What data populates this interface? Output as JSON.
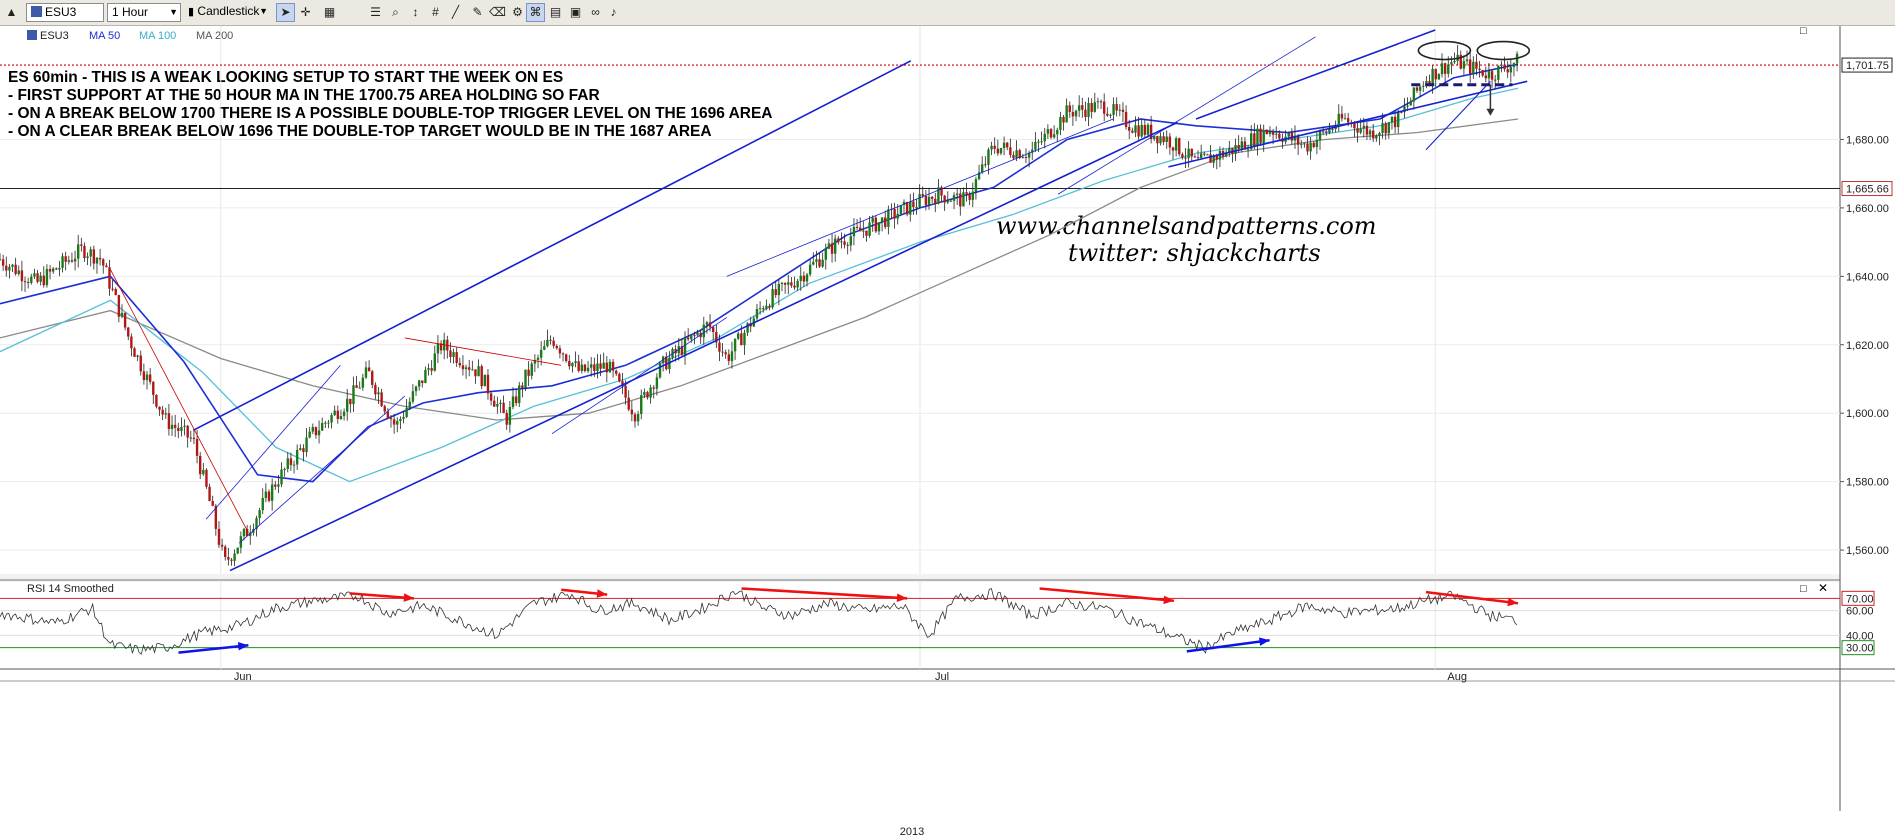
{
  "toolbar": {
    "symbol": "ESU3",
    "interval": "1 Hour",
    "chart_style": "Candlestick"
  },
  "legend": {
    "symbol": "ESU3",
    "ma50": "MA 50",
    "ma100": "MA 100",
    "ma200": "MA 200",
    "rsi": "RSI 14 Smoothed"
  },
  "annotations": [
    "ES 60min - THIS IS A WEAK LOOKING SETUP TO START THE WEEK ON ES",
    "- FIRST SUPPORT AT THE 50 HOUR MA IN THE 1700.75 AREA HOLDING SO FAR",
    "- ON A BREAK BELOW 1700 THERE IS A POSSIBLE DOUBLE-TOP TRIGGER LEVEL ON THE 1696 AREA",
    "- ON A CLEAR BREAK BELOW 1696 THE DOUBLE-TOP TARGET WOULD BE IN THE 1687 AREA"
  ],
  "watermark": {
    "line1": "www.channelsandpatterns.com",
    "line2": "twitter: shjackcharts"
  },
  "colors": {
    "candle_up": "#1a7a1a",
    "candle_down": "#b01818",
    "ma50": "#1a2fd6",
    "ma100": "#55c0d6",
    "ma200": "#8a8a8a",
    "channel": "#1520d0",
    "resistance_line": "#cc0000",
    "rsi_line": "#333333",
    "rsi_upper": "#d02020",
    "rsi_lower": "#209020",
    "arrow_red": "#ee1111",
    "arrow_blue": "#1111ee"
  },
  "chart_data": {
    "type": "candlestick",
    "symbol": "ESU3",
    "interval": "1 Hour",
    "price_axis": {
      "ticks": [
        "1,560.00",
        "1,580.00",
        "1,600.00",
        "1,620.00",
        "1,640.00",
        "1,660.00",
        "1,680.00"
      ],
      "tick_values": [
        1560,
        1580,
        1600,
        1620,
        1640,
        1660,
        1680
      ],
      "range": [
        1553,
        1712
      ],
      "last_price": "1,701.75",
      "last_value": 1701.75,
      "marker_price": "1,665.66",
      "marker_value": 1665.66
    },
    "time_axis": {
      "labels": [
        "Jun",
        "Jul",
        "Aug"
      ],
      "label_positions": [
        0.12,
        0.5,
        0.78
      ],
      "year": "2013"
    },
    "price_path": [
      [
        0.0,
        1645
      ],
      [
        0.02,
        1638
      ],
      [
        0.045,
        1648
      ],
      [
        0.055,
        1645
      ],
      [
        0.07,
        1622
      ],
      [
        0.09,
        1598
      ],
      [
        0.105,
        1592
      ],
      [
        0.115,
        1572
      ],
      [
        0.122,
        1556
      ],
      [
        0.135,
        1566
      ],
      [
        0.15,
        1580
      ],
      [
        0.17,
        1594
      ],
      [
        0.19,
        1604
      ],
      [
        0.2,
        1612
      ],
      [
        0.215,
        1596
      ],
      [
        0.24,
        1620
      ],
      [
        0.26,
        1612
      ],
      [
        0.275,
        1598
      ],
      [
        0.285,
        1610
      ],
      [
        0.3,
        1622
      ],
      [
        0.315,
        1612
      ],
      [
        0.33,
        1614
      ],
      [
        0.345,
        1600
      ],
      [
        0.36,
        1614
      ],
      [
        0.385,
        1626
      ],
      [
        0.395,
        1616
      ],
      [
        0.415,
        1632
      ],
      [
        0.435,
        1640
      ],
      [
        0.455,
        1650
      ],
      [
        0.475,
        1655
      ],
      [
        0.5,
        1662
      ],
      [
        0.51,
        1664
      ],
      [
        0.525,
        1662
      ],
      [
        0.54,
        1678
      ],
      [
        0.56,
        1676
      ],
      [
        0.58,
        1688
      ],
      [
        0.6,
        1690
      ],
      [
        0.615,
        1684
      ],
      [
        0.635,
        1680
      ],
      [
        0.65,
        1673
      ],
      [
        0.67,
        1677
      ],
      [
        0.69,
        1683
      ],
      [
        0.71,
        1678
      ],
      [
        0.73,
        1686
      ],
      [
        0.745,
        1682
      ],
      [
        0.76,
        1686
      ],
      [
        0.775,
        1698
      ],
      [
        0.79,
        1703
      ],
      [
        0.81,
        1699
      ],
      [
        0.825,
        1703
      ]
    ],
    "ma50_path": [
      [
        0.0,
        1632
      ],
      [
        0.06,
        1640
      ],
      [
        0.1,
        1615
      ],
      [
        0.14,
        1582
      ],
      [
        0.17,
        1580
      ],
      [
        0.2,
        1596
      ],
      [
        0.23,
        1603
      ],
      [
        0.26,
        1606
      ],
      [
        0.3,
        1608
      ],
      [
        0.34,
        1614
      ],
      [
        0.38,
        1624
      ],
      [
        0.42,
        1638
      ],
      [
        0.46,
        1652
      ],
      [
        0.5,
        1660
      ],
      [
        0.54,
        1666
      ],
      [
        0.58,
        1680
      ],
      [
        0.62,
        1686
      ],
      [
        0.65,
        1684
      ],
      [
        0.7,
        1682
      ],
      [
        0.75,
        1686
      ],
      [
        0.79,
        1698
      ],
      [
        0.825,
        1702
      ]
    ],
    "ma100_path": [
      [
        0.0,
        1618
      ],
      [
        0.06,
        1633
      ],
      [
        0.11,
        1612
      ],
      [
        0.15,
        1590
      ],
      [
        0.19,
        1580
      ],
      [
        0.24,
        1590
      ],
      [
        0.29,
        1602
      ],
      [
        0.34,
        1610
      ],
      [
        0.39,
        1622
      ],
      [
        0.44,
        1638
      ],
      [
        0.5,
        1650
      ],
      [
        0.55,
        1658
      ],
      [
        0.6,
        1668
      ],
      [
        0.65,
        1676
      ],
      [
        0.7,
        1680
      ],
      [
        0.75,
        1684
      ],
      [
        0.8,
        1692
      ],
      [
        0.825,
        1695
      ]
    ],
    "ma200_path": [
      [
        0.0,
        1622
      ],
      [
        0.06,
        1630
      ],
      [
        0.12,
        1616
      ],
      [
        0.17,
        1608
      ],
      [
        0.22,
        1602
      ],
      [
        0.27,
        1598
      ],
      [
        0.32,
        1600
      ],
      [
        0.37,
        1608
      ],
      [
        0.42,
        1618
      ],
      [
        0.47,
        1628
      ],
      [
        0.52,
        1640
      ],
      [
        0.57,
        1652
      ],
      [
        0.62,
        1666
      ],
      [
        0.67,
        1676
      ],
      [
        0.72,
        1680
      ],
      [
        0.77,
        1682
      ],
      [
        0.825,
        1686
      ]
    ],
    "rsi": {
      "levels": [
        "70.00",
        "60.00",
        "40.00",
        "30.00"
      ],
      "level_values": [
        70,
        60,
        40,
        30
      ],
      "range": [
        20,
        80
      ],
      "path": [
        [
          0.0,
          58
        ],
        [
          0.03,
          50
        ],
        [
          0.05,
          62
        ],
        [
          0.06,
          32
        ],
        [
          0.075,
          28
        ],
        [
          0.09,
          30
        ],
        [
          0.11,
          42
        ],
        [
          0.13,
          48
        ],
        [
          0.15,
          62
        ],
        [
          0.17,
          68
        ],
        [
          0.195,
          72
        ],
        [
          0.21,
          58
        ],
        [
          0.23,
          64
        ],
        [
          0.25,
          52
        ],
        [
          0.27,
          40
        ],
        [
          0.29,
          66
        ],
        [
          0.31,
          74
        ],
        [
          0.325,
          60
        ],
        [
          0.345,
          66
        ],
        [
          0.365,
          52
        ],
        [
          0.385,
          64
        ],
        [
          0.4,
          76
        ],
        [
          0.415,
          62
        ],
        [
          0.43,
          56
        ],
        [
          0.45,
          66
        ],
        [
          0.47,
          60
        ],
        [
          0.49,
          64
        ],
        [
          0.505,
          40
        ],
        [
          0.52,
          70
        ],
        [
          0.54,
          74
        ],
        [
          0.56,
          56
        ],
        [
          0.58,
          66
        ],
        [
          0.6,
          62
        ],
        [
          0.62,
          50
        ],
        [
          0.64,
          38
        ],
        [
          0.655,
          30
        ],
        [
          0.67,
          42
        ],
        [
          0.69,
          52
        ],
        [
          0.71,
          64
        ],
        [
          0.73,
          58
        ],
        [
          0.76,
          62
        ],
        [
          0.775,
          68
        ],
        [
          0.79,
          72
        ],
        [
          0.81,
          56
        ],
        [
          0.825,
          52
        ]
      ]
    }
  }
}
